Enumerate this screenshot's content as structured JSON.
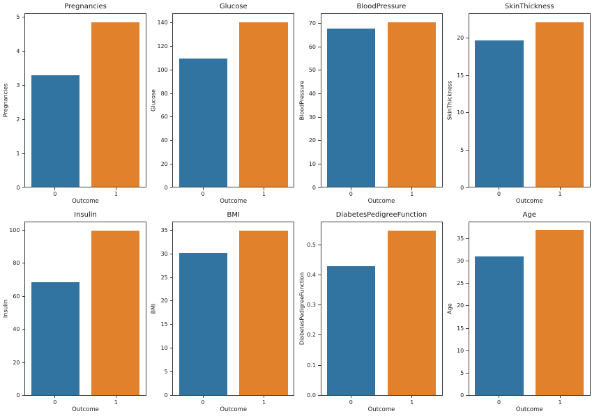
{
  "figure": {
    "background": "#ffffff",
    "spine_color": "#3d3d3d",
    "text_color": "#1a1a1a",
    "bar_colors": [
      "#3274a1",
      "#e1812c"
    ],
    "grid": "off",
    "legend": "none",
    "layout": "2 rows x 4 columns of bar subplots"
  },
  "chart_data": [
    {
      "type": "bar",
      "title": "Pregnancies",
      "xlabel": "Outcome",
      "ylabel": "Pregnancies",
      "categories": [
        "0",
        "1"
      ],
      "values": [
        3.3,
        4.87
      ],
      "ylim": [
        0,
        5.11
      ],
      "ytick_values": [
        0,
        1,
        2,
        3,
        4,
        5
      ],
      "yticks": [
        "0",
        "1",
        "2",
        "3",
        "4",
        "5"
      ]
    },
    {
      "type": "bar",
      "title": "Glucose",
      "xlabel": "Outcome",
      "ylabel": "Glucose",
      "categories": [
        "0",
        "1"
      ],
      "values": [
        110.0,
        141.3
      ],
      "ylim": [
        0,
        148.3
      ],
      "ytick_values": [
        0,
        20,
        40,
        60,
        80,
        100,
        120,
        140
      ],
      "yticks": [
        "0",
        "20",
        "40",
        "60",
        "80",
        "100",
        "120",
        "140"
      ]
    },
    {
      "type": "bar",
      "title": "BloodPressure",
      "xlabel": "Outcome",
      "ylabel": "BloodPressure",
      "categories": [
        "0",
        "1"
      ],
      "values": [
        68.2,
        70.8
      ],
      "ylim": [
        0,
        74.4
      ],
      "ytick_values": [
        0,
        10,
        20,
        30,
        40,
        50,
        60,
        70
      ],
      "yticks": [
        "0",
        "10",
        "20",
        "30",
        "40",
        "50",
        "60",
        "70"
      ]
    },
    {
      "type": "bar",
      "title": "SkinThickness",
      "xlabel": "Outcome",
      "ylabel": "SkinThickness",
      "categories": [
        "0",
        "1"
      ],
      "values": [
        19.7,
        22.2
      ],
      "ylim": [
        0,
        23.3
      ],
      "ytick_values": [
        0,
        5,
        10,
        15,
        20
      ],
      "yticks": [
        "0",
        "5",
        "10",
        "15",
        "20"
      ]
    },
    {
      "type": "bar",
      "title": "Insulin",
      "xlabel": "Outcome",
      "ylabel": "Insulin",
      "categories": [
        "0",
        "1"
      ],
      "values": [
        68.8,
        100.3
      ],
      "ylim": [
        0,
        105.4
      ],
      "ytick_values": [
        0,
        20,
        40,
        60,
        80,
        100
      ],
      "yticks": [
        "0",
        "20",
        "40",
        "60",
        "80",
        "100"
      ]
    },
    {
      "type": "bar",
      "title": "BMI",
      "xlabel": "Outcome",
      "ylabel": "BMI",
      "categories": [
        "0",
        "1"
      ],
      "values": [
        30.3,
        35.1
      ],
      "ylim": [
        0,
        36.9
      ],
      "ytick_values": [
        0,
        5,
        10,
        15,
        20,
        25,
        30,
        35
      ],
      "yticks": [
        "0",
        "5",
        "10",
        "15",
        "20",
        "25",
        "30",
        "35"
      ]
    },
    {
      "type": "bar",
      "title": "DiabetesPedigreeFunction",
      "xlabel": "Outcome",
      "ylabel": "DiabetesPedigreeFunction",
      "categories": [
        "0",
        "1"
      ],
      "values": [
        0.43,
        0.55
      ],
      "ylim": [
        0,
        0.578
      ],
      "ytick_values": [
        0,
        0.1,
        0.2,
        0.3,
        0.4,
        0.5
      ],
      "yticks": [
        "0.0",
        "0.1",
        "0.2",
        "0.3",
        "0.4",
        "0.5"
      ]
    },
    {
      "type": "bar",
      "title": "Age",
      "xlabel": "Outcome",
      "ylabel": "Age",
      "categories": [
        "0",
        "1"
      ],
      "values": [
        31.2,
        37.1
      ],
      "ylim": [
        0,
        38.9
      ],
      "ytick_values": [
        0,
        5,
        10,
        15,
        20,
        25,
        30,
        35
      ],
      "yticks": [
        "0",
        "5",
        "10",
        "15",
        "20",
        "25",
        "30",
        "35"
      ]
    }
  ]
}
